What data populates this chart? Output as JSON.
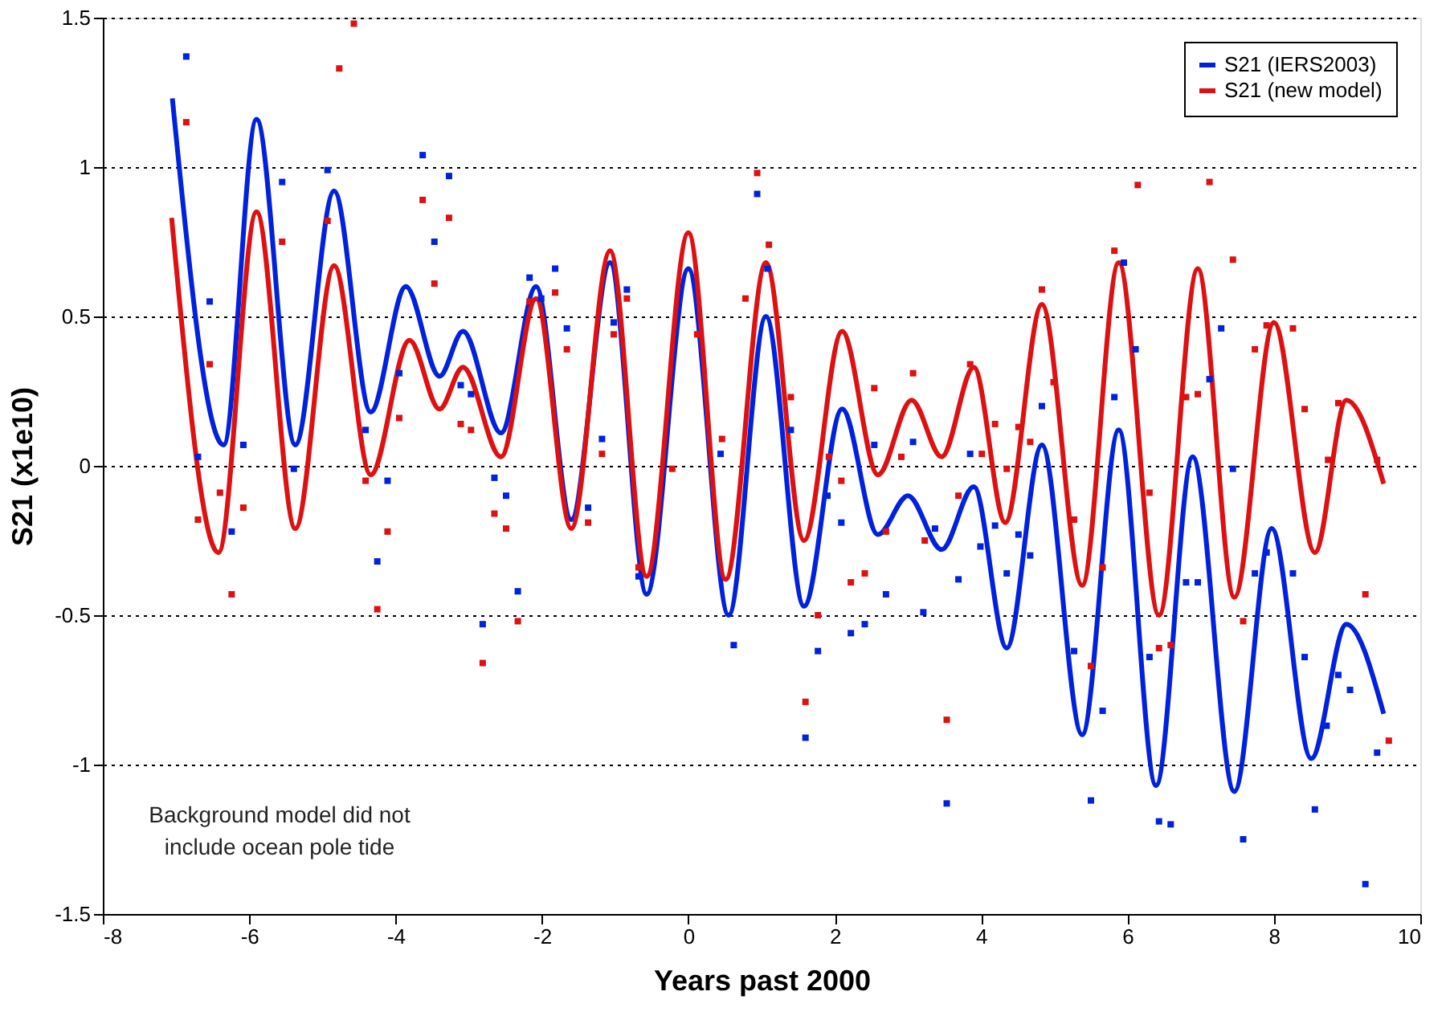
{
  "chart_data": {
    "type": "line",
    "xlabel": "Years past 2000",
    "ylabel": "S21 (x1e10)",
    "xlim": [
      -8,
      10
    ],
    "xticks": [
      -8,
      -6,
      -4,
      -2,
      0,
      2,
      4,
      6,
      8,
      10
    ],
    "ylim": [
      -1.5,
      1.5
    ],
    "yticks": [
      -1.5,
      -1,
      -0.5,
      0,
      0.5,
      1,
      1.5
    ],
    "grid": "y",
    "legend": "top right",
    "line_style": "solid",
    "marker": "none",
    "annotations": [
      "Background model did not include ocean pole tide"
    ],
    "series": [
      {
        "name": "S21 (IERS2003)",
        "color": "#0022dd",
        "x": [
          -7.05,
          -6.35,
          -5.9,
          -5.37,
          -4.84,
          -4.34,
          -3.86,
          -3.4,
          -3.08,
          -2.56,
          -2.08,
          -1.6,
          -1.07,
          -0.57,
          0.0,
          0.55,
          1.06,
          1.58,
          2.1,
          2.59,
          3.0,
          3.46,
          3.9,
          4.35,
          4.83,
          5.38,
          5.88,
          6.39,
          6.89,
          7.46,
          7.97,
          8.51,
          8.99,
          9.5
        ],
        "values": [
          1.23,
          0.07,
          1.16,
          0.07,
          0.92,
          0.18,
          0.6,
          0.3,
          0.45,
          0.11,
          0.6,
          -0.18,
          0.68,
          -0.43,
          0.66,
          -0.5,
          0.5,
          -0.47,
          0.19,
          -0.23,
          -0.1,
          -0.28,
          -0.07,
          -0.61,
          0.07,
          -0.9,
          0.12,
          -1.07,
          0.03,
          -1.09,
          -0.21,
          -0.98,
          -0.53,
          -0.83
        ]
      },
      {
        "name": "S21 (new model)",
        "color": "#dd1111",
        "x": [
          -7.06,
          -6.42,
          -5.9,
          -5.37,
          -4.84,
          -4.34,
          -3.81,
          -3.4,
          -3.08,
          -2.56,
          -2.08,
          -1.6,
          -1.07,
          -0.57,
          0.0,
          0.51,
          1.06,
          1.58,
          2.1,
          2.59,
          3.05,
          3.46,
          3.9,
          4.33,
          4.83,
          5.38,
          5.88,
          6.43,
          6.96,
          7.46,
          8.0,
          8.56,
          8.99,
          9.5
        ],
        "values": [
          0.83,
          -0.29,
          0.85,
          -0.21,
          0.67,
          -0.03,
          0.42,
          0.19,
          0.33,
          0.03,
          0.56,
          -0.21,
          0.72,
          -0.37,
          0.78,
          -0.38,
          0.68,
          -0.25,
          0.45,
          -0.03,
          0.22,
          0.03,
          0.33,
          -0.19,
          0.54,
          -0.4,
          0.68,
          -0.5,
          0.66,
          -0.44,
          0.48,
          -0.29,
          0.22,
          -0.06
        ]
      },
      {
        "color": "#0022dd",
        "type": "scatter",
        "marker": "square",
        "x": [
          -6.86,
          -6.54,
          -6.7,
          -6.24,
          -6.08,
          -5.55,
          -5.39,
          -4.93,
          -4.41,
          -4.25,
          -4.11,
          -3.95,
          -3.63,
          -3.47,
          -3.27,
          -3.11,
          -2.97,
          -2.81,
          -2.65,
          -2.49,
          -2.33,
          -2.17,
          -2.01,
          -1.82,
          -1.66,
          -1.37,
          -1.18,
          -1.02,
          -0.84,
          -0.68,
          0.44,
          0.62,
          0.94,
          1.08,
          1.4,
          1.77,
          1.6,
          1.9,
          2.09,
          2.22,
          2.41,
          2.54,
          2.7,
          3.07,
          3.21,
          3.37,
          3.69,
          3.53,
          3.85,
          3.99,
          4.19,
          4.35,
          4.51,
          4.67,
          4.83,
          5.27,
          5.5,
          5.66,
          5.82,
          5.95,
          6.11,
          6.3,
          6.43,
          6.59,
          6.8,
          6.96,
          7.12,
          7.28,
          7.44,
          7.58,
          7.74,
          7.9,
          8.26,
          8.42,
          8.56,
          8.72,
          8.88,
          9.04,
          9.25,
          9.41
        ],
        "values": [
          1.37,
          0.55,
          0.03,
          -0.22,
          0.07,
          0.95,
          -0.01,
          0.99,
          0.12,
          -0.32,
          -0.05,
          0.31,
          1.04,
          0.75,
          0.97,
          0.27,
          0.24,
          -0.53,
          -0.04,
          -0.1,
          -0.42,
          0.63,
          0.56,
          0.66,
          0.46,
          -0.14,
          0.09,
          0.48,
          0.59,
          -0.37,
          0.04,
          -0.6,
          0.91,
          0.66,
          0.12,
          -0.62,
          -0.91,
          -0.1,
          -0.19,
          -0.56,
          -0.53,
          0.07,
          -0.43,
          0.08,
          -0.49,
          -0.21,
          -0.38,
          -1.13,
          0.04,
          -0.27,
          -0.2,
          -0.36,
          -0.23,
          -0.3,
          0.2,
          -0.62,
          -1.12,
          -0.82,
          0.23,
          0.68,
          0.39,
          -0.64,
          -1.19,
          -1.2,
          -0.39,
          -0.39,
          0.29,
          0.46,
          -0.01,
          -1.25,
          -0.36,
          -0.29,
          -0.36,
          -0.64,
          -1.15,
          -0.87,
          -0.7,
          -0.75,
          -1.4,
          -0.96
        ]
      },
      {
        "color": "#dd1111",
        "type": "scatter",
        "marker": "square",
        "x": [
          -6.86,
          -6.7,
          -6.54,
          -6.4,
          -6.24,
          -6.08,
          -5.55,
          -4.93,
          -4.77,
          -4.57,
          -4.41,
          -4.25,
          -4.11,
          -3.95,
          -3.63,
          -3.47,
          -3.27,
          -3.11,
          -2.97,
          -2.81,
          -2.65,
          -2.49,
          -2.33,
          -2.17,
          -1.82,
          -1.66,
          -1.37,
          -1.18,
          -1.02,
          -0.84,
          -0.68,
          -0.22,
          0.12,
          0.46,
          0.78,
          0.94,
          1.1,
          1.4,
          1.77,
          1.6,
          1.92,
          2.09,
          2.22,
          2.41,
          2.54,
          2.7,
          3.07,
          2.91,
          3.23,
          3.53,
          3.69,
          3.85,
          4.01,
          4.19,
          4.35,
          4.51,
          4.67,
          4.83,
          4.99,
          5.27,
          5.5,
          5.66,
          5.82,
          6.14,
          6.3,
          6.43,
          6.59,
          6.8,
          6.96,
          7.12,
          7.44,
          7.58,
          7.74,
          7.9,
          8.26,
          8.42,
          8.74,
          8.88,
          9.25,
          9.41,
          9.57
        ],
        "values": [
          1.15,
          -0.18,
          0.34,
          -0.09,
          -0.43,
          -0.14,
          0.75,
          0.82,
          1.33,
          1.48,
          -0.05,
          -0.48,
          -0.22,
          0.16,
          0.89,
          0.61,
          0.83,
          0.14,
          0.12,
          -0.66,
          -0.16,
          -0.21,
          -0.52,
          0.55,
          0.58,
          0.39,
          -0.19,
          0.04,
          0.44,
          0.56,
          -0.34,
          -0.01,
          0.44,
          0.09,
          0.56,
          0.98,
          0.74,
          0.23,
          -0.5,
          -0.79,
          0.03,
          -0.05,
          -0.39,
          -0.36,
          0.26,
          -0.22,
          0.31,
          0.03,
          -0.25,
          -0.85,
          -0.1,
          0.34,
          0.04,
          0.14,
          -0.01,
          0.13,
          0.08,
          0.59,
          0.28,
          -0.18,
          -0.67,
          -0.34,
          0.72,
          0.94,
          -0.09,
          -0.61,
          -0.6,
          0.23,
          0.24,
          0.95,
          0.69,
          -0.52,
          0.39,
          0.47,
          0.46,
          0.19,
          0.02,
          0.21,
          -0.43,
          0.02,
          -0.92
        ]
      }
    ]
  }
}
